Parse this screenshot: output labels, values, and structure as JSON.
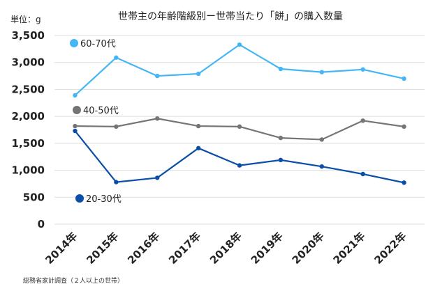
{
  "chart_data": {
    "type": "line",
    "title": "世帯主の年齢階級別ー世帯当たり「餅」の購入数量",
    "unit_label": "単位：g",
    "source": "総務省家計調査（２人以上の世帯）",
    "categories": [
      "2014年",
      "2015年",
      "2016年",
      "2017年",
      "2018年",
      "2019年",
      "2020年",
      "2021年",
      "2022年"
    ],
    "ylim": [
      0,
      3500
    ],
    "yticks": [
      0,
      500,
      1000,
      1500,
      2000,
      2500,
      3000,
      3500
    ],
    "ytick_labels": [
      "0",
      "500",
      "1,000",
      "1,500",
      "2,000",
      "2,500",
      "3,000",
      "3,500"
    ],
    "grid": true,
    "series": [
      {
        "name": "60-70代",
        "color": "#45b6f5",
        "values": [
          2390,
          3090,
          2750,
          2790,
          3330,
          2880,
          2820,
          2870,
          2700
        ]
      },
      {
        "name": "40-50代",
        "color": "#757575",
        "values": [
          1820,
          1810,
          1960,
          1820,
          1810,
          1600,
          1570,
          1920,
          1810
        ]
      },
      {
        "name": "20-30代",
        "color": "#0b4ea8",
        "values": [
          1730,
          780,
          860,
          1410,
          1090,
          1190,
          1070,
          930,
          770
        ]
      }
    ]
  }
}
